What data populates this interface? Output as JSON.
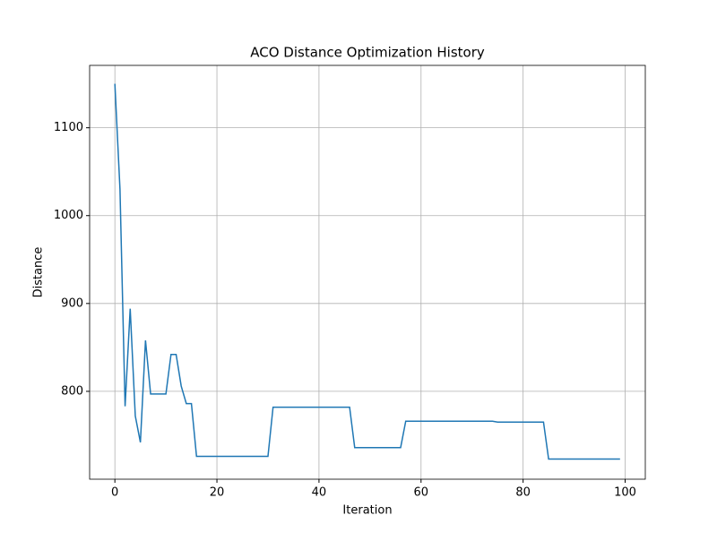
{
  "chart_data": {
    "type": "line",
    "title": "ACO Distance Optimization History",
    "xlabel": "Iteration",
    "ylabel": "Distance",
    "x": [
      0,
      1,
      2,
      3,
      4,
      5,
      6,
      7,
      8,
      9,
      10,
      11,
      12,
      13,
      14,
      15,
      16,
      17,
      18,
      19,
      20,
      21,
      22,
      23,
      24,
      25,
      26,
      27,
      28,
      29,
      30,
      31,
      32,
      33,
      34,
      35,
      36,
      37,
      38,
      39,
      40,
      41,
      42,
      43,
      44,
      45,
      46,
      47,
      48,
      49,
      50,
      51,
      52,
      53,
      54,
      55,
      56,
      57,
      58,
      59,
      60,
      61,
      62,
      63,
      64,
      65,
      66,
      67,
      68,
      69,
      70,
      71,
      72,
      73,
      74,
      75,
      76,
      77,
      78,
      79,
      80,
      81,
      82,
      83,
      84,
      85,
      86,
      87,
      88,
      89,
      90,
      91,
      92,
      93,
      94,
      95,
      96,
      97,
      98,
      99
    ],
    "series": [
      {
        "name": "Distance",
        "color": "#1f77b4",
        "values": [
          1150,
          1030,
          783,
          894,
          772,
          742,
          858,
          797,
          797,
          797,
          797,
          842,
          842,
          806,
          786,
          786,
          726,
          726,
          726,
          726,
          726,
          726,
          726,
          726,
          726,
          726,
          726,
          726,
          726,
          726,
          726,
          782,
          782,
          782,
          782,
          782,
          782,
          782,
          782,
          782,
          782,
          782,
          782,
          782,
          782,
          782,
          782,
          736,
          736,
          736,
          736,
          736,
          736,
          736,
          736,
          736,
          736,
          766,
          766,
          766,
          766,
          766,
          766,
          766,
          766,
          766,
          766,
          766,
          766,
          766,
          766,
          766,
          766,
          766,
          766,
          765,
          765,
          765,
          765,
          765,
          765,
          765,
          765,
          765,
          765,
          723,
          723,
          723,
          723,
          723,
          723,
          723,
          723,
          723,
          723,
          723,
          723,
          723,
          723,
          723
        ]
      }
    ],
    "xlim": [
      -4.95,
      103.95
    ],
    "ylim": [
      700,
      1171
    ],
    "xticks": [
      0,
      20,
      40,
      60,
      80,
      100
    ],
    "yticks": [
      800,
      900,
      1000,
      1100
    ],
    "grid": true
  }
}
